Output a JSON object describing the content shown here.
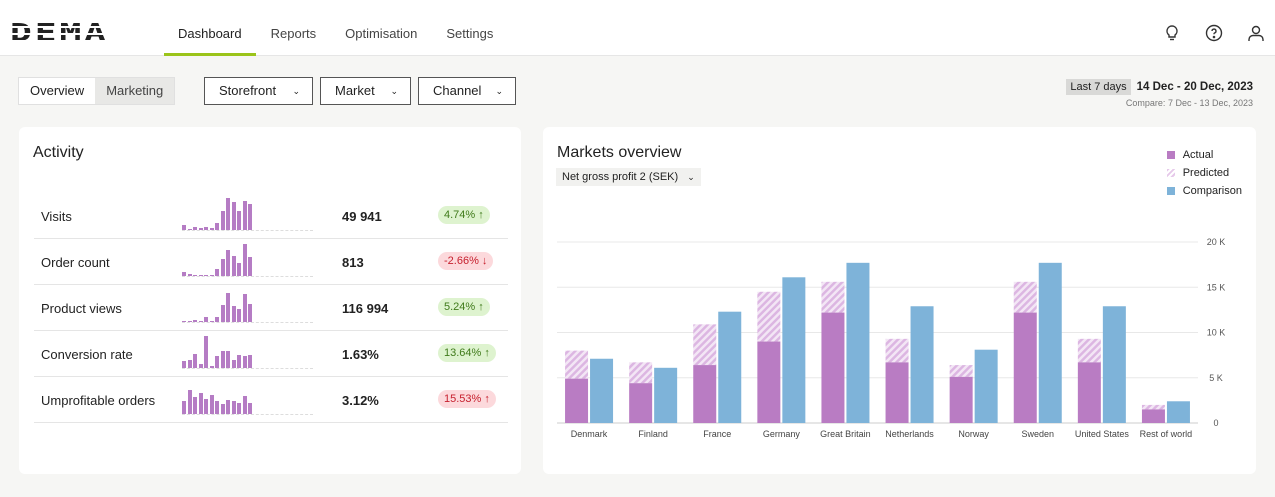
{
  "brand": "DEMA",
  "nav": [
    "Dashboard",
    "Reports",
    "Optimisation",
    "Settings"
  ],
  "icons": [
    "lightbulb-icon",
    "help-icon",
    "user-icon"
  ],
  "view_tabs": [
    "Overview",
    "Marketing"
  ],
  "filters": [
    "Storefront",
    "Market",
    "Channel"
  ],
  "date": {
    "preset": "Last 7 days",
    "range": "14 Dec - 20 Dec, 2023",
    "compare": "Compare: 7 Dec - 13 Dec, 2023"
  },
  "activity": {
    "title": "Activity",
    "rows": [
      {
        "label": "Visits",
        "value": "49 941",
        "change": "4.74%",
        "dir": "up",
        "good": true,
        "spark": [
          5,
          1,
          3,
          2,
          3,
          2,
          7,
          19,
          32,
          28,
          19,
          29,
          26
        ]
      },
      {
        "label": "Order count",
        "value": "813",
        "change": "-2.66%",
        "dir": "down",
        "good": false,
        "spark": [
          4,
          2,
          0,
          0,
          0,
          0,
          7,
          17,
          26,
          20,
          13,
          32,
          19
        ]
      },
      {
        "label": "Product views",
        "value": "116 994",
        "change": "5.24%",
        "dir": "up",
        "good": true,
        "spark": [
          1,
          1,
          2,
          1,
          5,
          1,
          5,
          17,
          29,
          16,
          13,
          28,
          18
        ]
      },
      {
        "label": "Conversion rate",
        "value": "1.63%",
        "change": "13.64%",
        "dir": "up",
        "good": true,
        "spark": [
          7,
          8,
          14,
          4,
          32,
          2,
          12,
          17,
          17,
          8,
          13,
          12,
          13
        ]
      },
      {
        "label": "Umprofitable orders",
        "value": "3.12%",
        "change": "15.53%",
        "dir": "up",
        "good": false,
        "spark": [
          13,
          24,
          17,
          21,
          15,
          19,
          13,
          10,
          14,
          13,
          11,
          18,
          11
        ]
      }
    ]
  },
  "markets": {
    "title": "Markets overview",
    "metric": "Net gross profit 2 (SEK)",
    "legend": [
      "Actual",
      "Predicted",
      "Comparison"
    ]
  },
  "chart_data": {
    "type": "bar",
    "categories": [
      "Denmark",
      "Finland",
      "France",
      "Germany",
      "Great Britain",
      "Netherlands",
      "Norway",
      "Sweden",
      "United States",
      "Rest of world"
    ],
    "series": [
      {
        "name": "Actual",
        "values": [
          4.9,
          4.4,
          6.4,
          9.0,
          12.2,
          6.7,
          5.1,
          12.2,
          6.7,
          1.5
        ]
      },
      {
        "name": "Predicted",
        "values": [
          8.0,
          6.7,
          10.9,
          14.5,
          15.6,
          9.3,
          6.4,
          15.6,
          9.3,
          2.0
        ]
      },
      {
        "name": "Comparison",
        "values": [
          7.1,
          6.1,
          12.3,
          16.1,
          17.7,
          12.9,
          8.1,
          17.7,
          12.9,
          2.4
        ]
      }
    ],
    "yticks": [
      "0",
      "5 K",
      "10 K",
      "15 K",
      "20 K"
    ],
    "ylim": [
      0,
      20
    ],
    "unit": "K SEK",
    "grid": true,
    "legend": "top-right",
    "colors": {
      "actual": "#b97cc3",
      "predicted": "#e6c9ea",
      "comparison": "#7eb3d9"
    }
  }
}
